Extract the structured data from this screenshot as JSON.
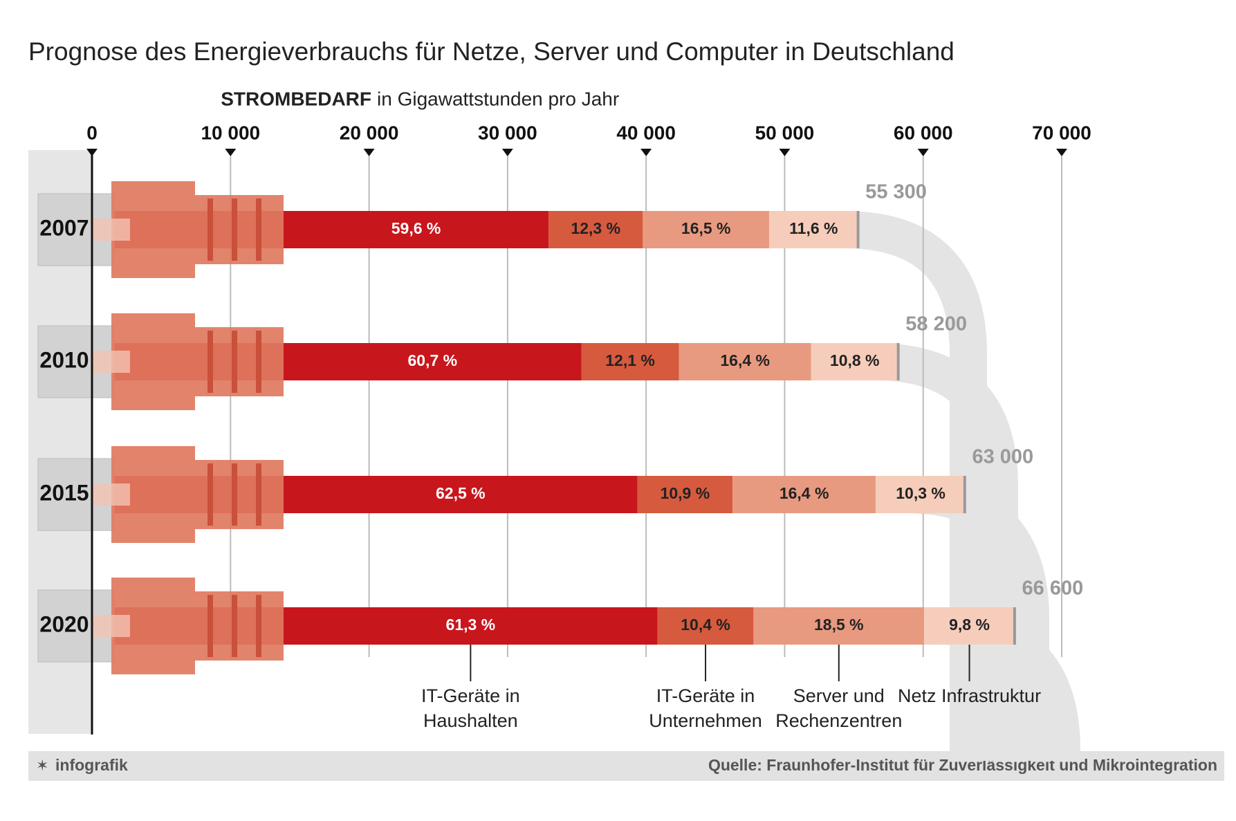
{
  "chart_data": {
    "type": "bar",
    "title": "Prognose des Energieverbrauchs für Netze, Server und Computer in Deutschland",
    "axis_label_bold": "STROMBEDARF",
    "axis_label": "in Gigawattstunden pro Jahr",
    "categories": [
      "2007",
      "2010",
      "2015",
      "2020"
    ],
    "totals": [
      55300,
      58200,
      63000,
      66600
    ],
    "total_labels": [
      "55 300",
      "58 200",
      "63 000",
      "66 600"
    ],
    "series": [
      {
        "name": "IT-Geräte in Haushalten",
        "color": "#c8161d",
        "values": [
          59.6,
          60.7,
          62.5,
          61.3
        ],
        "value_labels": [
          "59,6 %",
          "60,7 %",
          "62,5 %",
          "61,3 %"
        ]
      },
      {
        "name": "IT-Geräte in Unternehmen",
        "color": "#d65a3e",
        "values": [
          12.3,
          12.1,
          10.9,
          10.4
        ],
        "value_labels": [
          "12,3 %",
          "12,1 %",
          "10,9 %",
          "10,4 %"
        ]
      },
      {
        "name": "Server und Rechenzentren",
        "color": "#e89a80",
        "values": [
          16.5,
          16.4,
          16.4,
          18.5
        ],
        "value_labels": [
          "16,5 %",
          "16,4 %",
          "16,4 %",
          "18,5 %"
        ]
      },
      {
        "name": "Netz Infrastruktur",
        "color": "#f6cdbb",
        "values": [
          11.6,
          10.8,
          10.3,
          9.8
        ],
        "value_labels": [
          "11,6 %",
          "10,8 %",
          "10,3 %",
          "9,8 %"
        ]
      }
    ],
    "xlim": [
      0,
      70000
    ],
    "xticks": [
      0,
      {
        "value": 10000,
        "label": "10 000"
      },
      {
        "value": 20000,
        "label": "20 000"
      },
      {
        "value": 30000,
        "label": "30 000"
      },
      {
        "value": 40000,
        "label": "40 000"
      },
      {
        "value": 50000,
        "label": "50 000"
      },
      {
        "value": 60000,
        "label": "60 000"
      },
      {
        "value": 70000,
        "label": "70 000"
      }
    ],
    "grid": true,
    "brand": "infografik",
    "source": "Quelle: Fraunhofer-Institut für Zuverlässigkeit und Mikrointegration"
  }
}
